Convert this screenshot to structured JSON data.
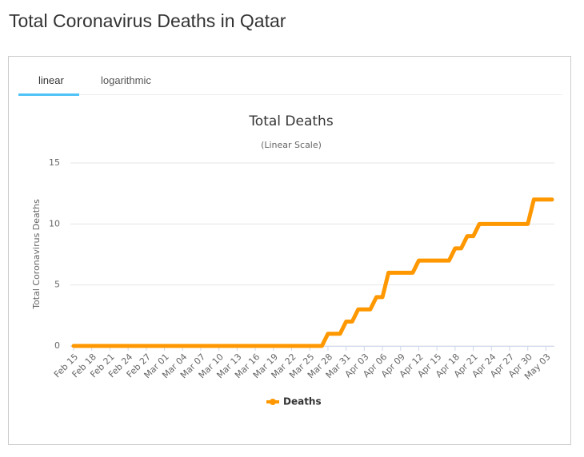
{
  "page_title": "Total Coronavirus Deaths in Qatar",
  "tabs": [
    "linear",
    "logarithmic"
  ],
  "chart_data": {
    "type": "line",
    "title": "Total Deaths",
    "subtitle": "(Linear Scale)",
    "y_label": "Total Coronavirus Deaths",
    "categories": [
      "Feb 15",
      null,
      null,
      "Feb 18",
      null,
      null,
      "Feb 21",
      null,
      null,
      "Feb 24",
      null,
      null,
      "Feb 27",
      null,
      null,
      "Mar 01",
      null,
      null,
      "Mar 04",
      null,
      null,
      "Mar 07",
      null,
      null,
      "Mar 10",
      null,
      null,
      "Mar 13",
      null,
      null,
      "Mar 16",
      null,
      null,
      "Mar 19",
      null,
      null,
      "Mar 22",
      null,
      null,
      "Mar 25",
      null,
      null,
      "Mar 28",
      null,
      null,
      "Mar 31",
      null,
      null,
      "Apr 03",
      null,
      null,
      "Apr 06",
      null,
      null,
      "Apr 09",
      null,
      null,
      "Apr 12",
      null,
      null,
      "Apr 15",
      null,
      null,
      "Apr 18",
      null,
      null,
      "Apr 21",
      null,
      null,
      "Apr 24",
      null,
      null,
      "Apr 27",
      null,
      null,
      "Apr 30",
      null,
      null,
      "May 03",
      null
    ],
    "series": [
      {
        "name": "Deaths",
        "color": "#ff9800",
        "values": [
          0,
          0,
          0,
          0,
          0,
          0,
          0,
          0,
          0,
          0,
          0,
          0,
          0,
          0,
          0,
          0,
          0,
          0,
          0,
          0,
          0,
          0,
          0,
          0,
          0,
          0,
          0,
          0,
          0,
          0,
          0,
          0,
          0,
          0,
          0,
          0,
          0,
          0,
          0,
          0,
          0,
          0,
          1,
          1,
          1,
          2,
          2,
          3,
          3,
          3,
          4,
          4,
          6,
          6,
          6,
          6,
          6,
          7,
          7,
          7,
          7,
          7,
          7,
          8,
          8,
          9,
          9,
          10,
          10,
          10,
          10,
          10,
          10,
          10,
          10,
          10,
          12,
          12,
          12,
          12
        ]
      }
    ],
    "ylim": [
      0,
      15
    ],
    "yticks": [
      0,
      5,
      10,
      15
    ],
    "grid": true
  }
}
